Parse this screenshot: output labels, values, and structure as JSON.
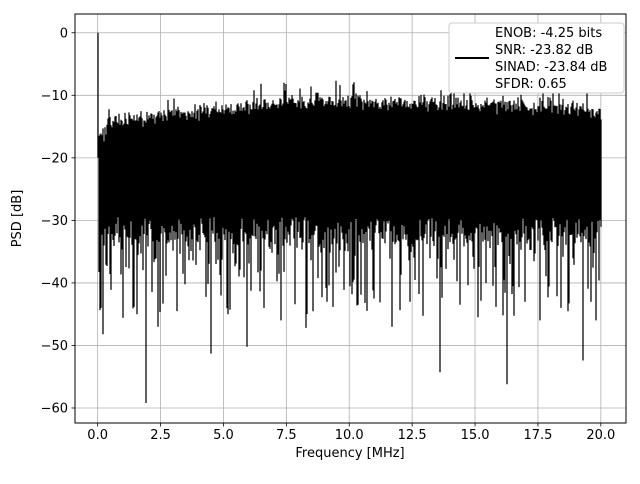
{
  "figure": {
    "background_color": "#ffffff"
  },
  "chart_data": {
    "type": "line",
    "title": "",
    "xlabel": "Frequency [MHz]",
    "ylabel": "PSD [dB]",
    "xlim": [
      -0.9,
      21.0
    ],
    "ylim": [
      -62.4,
      3.0
    ],
    "grid": true,
    "grid_color": "#b0b0b0",
    "axes_edge_color": "#000000",
    "trace_color": "#000000",
    "xticks": {
      "values": [
        0.0,
        2.5,
        5.0,
        7.5,
        10.0,
        12.5,
        15.0,
        17.5,
        20.0
      ],
      "labels": [
        "0.0",
        "2.5",
        "5.0",
        "7.5",
        "10.0",
        "12.5",
        "15.0",
        "17.5",
        "20.0"
      ]
    },
    "yticks": {
      "values": [
        0,
        -10,
        -20,
        -30,
        -40,
        -50,
        -60
      ],
      "labels": [
        "0",
        "−10",
        "−20",
        "−30",
        "−40",
        "−50",
        "−60"
      ]
    },
    "series_description": "Dense noise-like power spectral density trace spanning 0 to 20 MHz, drawn in solid black",
    "dc_spike": {
      "frequency_mhz": 0.0,
      "peak_db": 0.0
    },
    "noise_top_envelope_db": [
      [
        0.0,
        -14.0
      ],
      [
        0.15,
        -16.5
      ],
      [
        0.5,
        -14.6
      ],
      [
        1.0,
        -14.2
      ],
      [
        2.0,
        -13.4
      ],
      [
        3.0,
        -13.0
      ],
      [
        4.0,
        -12.6
      ],
      [
        5.0,
        -12.3
      ],
      [
        6.0,
        -11.8
      ],
      [
        7.0,
        -11.3
      ],
      [
        8.0,
        -11.0
      ],
      [
        9.0,
        -10.9
      ],
      [
        10.0,
        -10.8
      ],
      [
        11.0,
        -11.0
      ],
      [
        12.0,
        -11.2
      ],
      [
        13.0,
        -11.3
      ],
      [
        14.0,
        -11.4
      ],
      [
        15.0,
        -11.5
      ],
      [
        16.0,
        -11.5
      ],
      [
        17.0,
        -11.6
      ],
      [
        18.0,
        -11.7
      ],
      [
        19.0,
        -12.0
      ],
      [
        20.0,
        -12.8
      ]
    ],
    "noise_solid_floor_db": [
      -29.5,
      -34.0
    ],
    "noise_streak_range_db": [
      -34.0,
      -47.5
    ],
    "notable_maxima": [
      [
        7.5,
        -8.2
      ],
      [
        10.2,
        -7.9
      ]
    ],
    "notable_minima": [
      [
        0.12,
        -44.0
      ],
      [
        0.22,
        -48.2
      ],
      [
        1.55,
        -45.0
      ],
      [
        1.92,
        -59.2
      ],
      [
        2.4,
        -47.0
      ],
      [
        3.15,
        -44.5
      ],
      [
        4.5,
        -51.3
      ],
      [
        5.2,
        -45.0
      ],
      [
        5.92,
        -50.2
      ],
      [
        6.6,
        -44.0
      ],
      [
        7.3,
        -46.0
      ],
      [
        8.3,
        -47.2
      ],
      [
        9.1,
        -43.0
      ],
      [
        10.35,
        -43.5
      ],
      [
        11.0,
        -42.5
      ],
      [
        11.7,
        -47.0
      ],
      [
        12.4,
        -43.0
      ],
      [
        13.62,
        -54.3
      ],
      [
        14.4,
        -43.5
      ],
      [
        15.1,
        -45.5
      ],
      [
        16.28,
        -56.2
      ],
      [
        17.0,
        -43.0
      ],
      [
        17.6,
        -46.0
      ],
      [
        18.4,
        -44.0
      ],
      [
        19.3,
        -52.4
      ],
      [
        19.8,
        -46.0
      ]
    ],
    "legend": {
      "position": "upper right",
      "border_color": "#cccccc",
      "background_color": "#ffffff",
      "handle_color": "#000000",
      "lines": [
        "ENOB: -4.25 bits",
        "SNR: -23.82 dB",
        "SINAD: -23.84 dB",
        "SFDR: 0.65"
      ]
    }
  }
}
